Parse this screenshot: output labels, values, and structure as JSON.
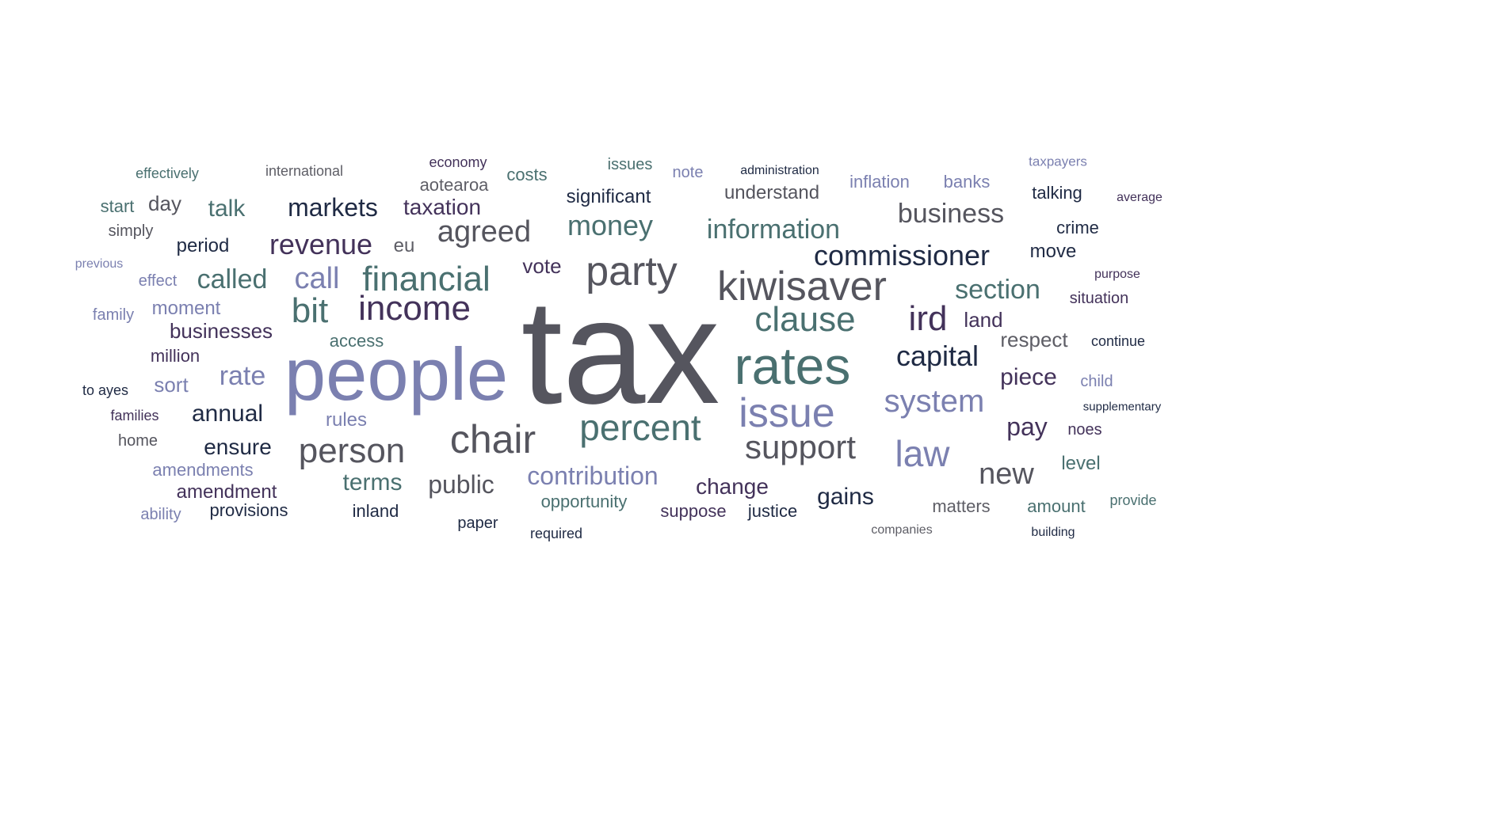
{
  "palette": {
    "dark_gray": "#55555e",
    "periwinkle": "#7b80b0",
    "teal": "#4a7070",
    "navy": "#1f2a44",
    "plum": "#43325a",
    "gray": "#5e5e66"
  },
  "words": [
    {
      "text": "tax",
      "color": "#55555e"
    },
    {
      "text": "people",
      "color": "#7b80b0"
    },
    {
      "text": "rates",
      "color": "#4a7070"
    },
    {
      "text": "kiwisaver",
      "color": "#55555e"
    },
    {
      "text": "party",
      "color": "#55555e"
    },
    {
      "text": "chair",
      "color": "#55555e"
    },
    {
      "text": "issue",
      "color": "#7b80b0"
    },
    {
      "text": "income",
      "color": "#43325a"
    },
    {
      "text": "financial",
      "color": "#4a7070"
    },
    {
      "text": "percent",
      "color": "#4a7070"
    },
    {
      "text": "support",
      "color": "#55555e"
    },
    {
      "text": "person",
      "color": "#55555e"
    },
    {
      "text": "clause",
      "color": "#4a7070"
    },
    {
      "text": "system",
      "color": "#7b80b0"
    },
    {
      "text": "law",
      "color": "#7b80b0"
    },
    {
      "text": "ird",
      "color": "#43325a"
    },
    {
      "text": "bit",
      "color": "#4a7070"
    },
    {
      "text": "commissioner",
      "color": "#1f2a44"
    },
    {
      "text": "capital",
      "color": "#1f2a44"
    },
    {
      "text": "revenue",
      "color": "#43325a"
    },
    {
      "text": "agreed",
      "color": "#55555e"
    },
    {
      "text": "new",
      "color": "#55555e"
    },
    {
      "text": "call",
      "color": "#7b80b0"
    },
    {
      "text": "money",
      "color": "#4a7070"
    },
    {
      "text": "information",
      "color": "#4a7070"
    },
    {
      "text": "business",
      "color": "#55555e"
    },
    {
      "text": "section",
      "color": "#4a7070"
    },
    {
      "text": "contribution",
      "color": "#7b80b0"
    },
    {
      "text": "markets",
      "color": "#1f2a44"
    },
    {
      "text": "called",
      "color": "#4a7070"
    },
    {
      "text": "public",
      "color": "#55555e"
    },
    {
      "text": "rate",
      "color": "#7b80b0"
    },
    {
      "text": "gains",
      "color": "#1f2a44"
    },
    {
      "text": "pay",
      "color": "#43325a"
    },
    {
      "text": "taxation",
      "color": "#43325a"
    },
    {
      "text": "piece",
      "color": "#43325a"
    },
    {
      "text": "respect",
      "color": "#5e5e66"
    },
    {
      "text": "change",
      "color": "#43325a"
    },
    {
      "text": "terms",
      "color": "#4a7070"
    },
    {
      "text": "businesses",
      "color": "#43325a"
    },
    {
      "text": "ensure",
      "color": "#1f2a44"
    },
    {
      "text": "annual",
      "color": "#1f2a44"
    },
    {
      "text": "talk",
      "color": "#4a7070"
    },
    {
      "text": "vote",
      "color": "#43325a"
    },
    {
      "text": "significant",
      "color": "#1f2a44"
    },
    {
      "text": "understand",
      "color": "#55555e"
    },
    {
      "text": "land",
      "color": "#43325a"
    },
    {
      "text": "amendment",
      "color": "#43325a"
    },
    {
      "text": "matters",
      "color": "#5e5e66"
    },
    {
      "text": "amount",
      "color": "#4a7070"
    },
    {
      "text": "level",
      "color": "#4a7070"
    },
    {
      "text": "talking",
      "color": "#1f2a44"
    },
    {
      "text": "crime",
      "color": "#1f2a44"
    },
    {
      "text": "move",
      "color": "#1f2a44"
    },
    {
      "text": "opportunity",
      "color": "#4a7070"
    },
    {
      "text": "moment",
      "color": "#7b80b0"
    },
    {
      "text": "sort",
      "color": "#7b80b0"
    },
    {
      "text": "day",
      "color": "#55555e"
    },
    {
      "text": "period",
      "color": "#1f2a44"
    },
    {
      "text": "eu",
      "color": "#5e5e66"
    },
    {
      "text": "access",
      "color": "#4a7070"
    },
    {
      "text": "rules",
      "color": "#7b80b0"
    },
    {
      "text": "million",
      "color": "#43325a"
    },
    {
      "text": "amendments",
      "color": "#7b80b0"
    },
    {
      "text": "provisions",
      "color": "#1f2a44"
    },
    {
      "text": "inland",
      "color": "#1f2a44"
    },
    {
      "text": "suppose",
      "color": "#43325a"
    },
    {
      "text": "justice",
      "color": "#1f2a44"
    },
    {
      "text": "aotearoa",
      "color": "#5e5e66"
    },
    {
      "text": "costs",
      "color": "#4a7070"
    },
    {
      "text": "inflation",
      "color": "#7b80b0"
    },
    {
      "text": "banks",
      "color": "#7b80b0"
    },
    {
      "text": "effect",
      "color": "#7b80b0"
    },
    {
      "text": "family",
      "color": "#7b80b0"
    },
    {
      "text": "start",
      "color": "#4a7070"
    },
    {
      "text": "simply",
      "color": "#55555e"
    },
    {
      "text": "home",
      "color": "#55555e"
    },
    {
      "text": "families",
      "color": "#43325a"
    },
    {
      "text": "to ayes",
      "color": "#1f2a44"
    },
    {
      "text": "ability",
      "color": "#7b80b0"
    },
    {
      "text": "paper",
      "color": "#1f2a44"
    },
    {
      "text": "required",
      "color": "#1f2a44"
    },
    {
      "text": "noes",
      "color": "#43325a"
    },
    {
      "text": "child",
      "color": "#7b80b0"
    },
    {
      "text": "situation",
      "color": "#43325a"
    },
    {
      "text": "continue",
      "color": "#1f2a44"
    },
    {
      "text": "provide",
      "color": "#4a7070"
    },
    {
      "text": "note",
      "color": "#7b80b0"
    },
    {
      "text": "issues",
      "color": "#4a7070"
    },
    {
      "text": "effectively",
      "color": "#4a7070"
    },
    {
      "text": "international",
      "color": "#5e5e66"
    },
    {
      "text": "economy",
      "color": "#43325a"
    },
    {
      "text": "administration",
      "color": "#1f2a44"
    },
    {
      "text": "taxpayers",
      "color": "#7b80b0"
    },
    {
      "text": "average",
      "color": "#43325a"
    },
    {
      "text": "previous",
      "color": "#7b80b0"
    },
    {
      "text": "purpose",
      "color": "#43325a"
    },
    {
      "text": "supplementary",
      "color": "#1f2a44"
    },
    {
      "text": "companies",
      "color": "#5e5e66"
    },
    {
      "text": "building",
      "color": "#1f2a44"
    }
  ]
}
